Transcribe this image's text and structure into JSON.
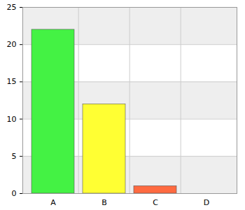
{
  "chart_data": {
    "type": "bar",
    "categories": [
      "A",
      "B",
      "C",
      "D"
    ],
    "values": [
      22,
      12,
      1,
      0
    ],
    "colors": [
      "#44f244",
      "#ffff33",
      "#ff6a40",
      "#4a6cff"
    ],
    "ylim": [
      0,
      25
    ],
    "yticks": [
      0,
      5,
      10,
      15,
      20,
      25
    ],
    "grid": true
  }
}
